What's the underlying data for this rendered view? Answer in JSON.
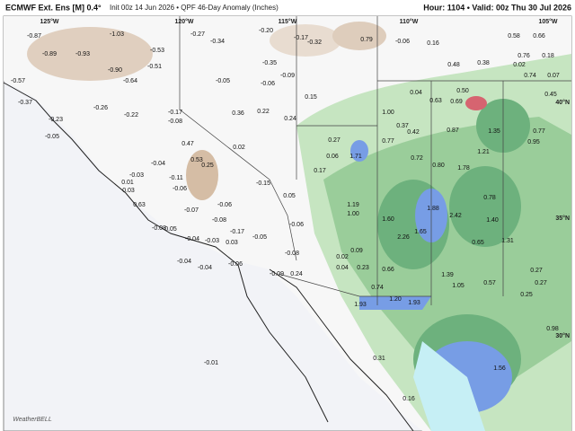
{
  "header": {
    "model": "ECMWF Ext. Ens [M] 0.4°",
    "init": "Init 00z 14 Jun 2026 • QPF 46-Day Anomaly (Inches)",
    "valid": "Hour: 1104 • Valid: 00z Thu 30 Jul 2026"
  },
  "map": {
    "longitudes": [
      "125°W",
      "120°W",
      "115°W",
      "110°W",
      "105°W"
    ],
    "latitudes": [
      "40°N",
      "35°N",
      "30°N"
    ],
    "logo": "WeatherBELL",
    "value_labels": [
      "-0.87",
      "-1.03",
      "-0.89",
      "-0.93",
      "-0.53",
      "-0.90",
      "-0.51",
      "-0.64",
      "-0.57",
      "-0.27",
      "-0.34",
      "-0.20",
      "-0.17",
      "-0.32",
      "0.79",
      "-0.06",
      "0.16",
      "0.58",
      "0.66",
      "0.76",
      "0.18",
      "0.48",
      "0.38",
      "0.02",
      "0.74",
      "0.07",
      "-0.35",
      "-0.09",
      "-0.05",
      "-0.06",
      "0.15",
      "0.04",
      "0.63",
      "0.69",
      "0.50",
      "0.45",
      "-0.37",
      "-0.26",
      "-0.22",
      "-0.17",
      "-0.08",
      "-0.23",
      "0.36",
      "0.22",
      "0.24",
      "1.00",
      "0.37",
      "0.42",
      "0.87",
      "1.35",
      "0.77",
      "0.95",
      "-0.05",
      "0.27",
      "0.77",
      "0.47",
      "0.02",
      "1.21",
      "0.06",
      "1.71",
      "0.72",
      "0.80",
      "1.78",
      "-0.04",
      "0.53",
      "0.25",
      "0.17",
      "-0.03",
      "-0.11",
      "0.01",
      "0.03",
      "-0.06",
      "-0.15",
      "0.05",
      "0.78",
      "1.19",
      "1.00",
      "1.88",
      "2.42",
      "1.40",
      "1.60",
      "0.63",
      "-0.06",
      "-0.07",
      "-0.08",
      "-0.17",
      "-0.05",
      "-0.06",
      "1.65",
      "2.26",
      "1.31",
      "0.65",
      "-0.08",
      "0.05",
      "-0.04",
      "-0.03",
      "0.03",
      "0.09",
      "0.02",
      "-0.08",
      "-0.04",
      "-0.04",
      "-0.06",
      "0.04",
      "0.23",
      "0.66",
      "1.39",
      "-0.09",
      "0.24",
      "0.27",
      "1.05",
      "0.57",
      "0.27",
      "0.74",
      "1.20",
      "0.25",
      "1.93",
      "1.93",
      "0.98",
      "0.31",
      "-0.01",
      "1.56",
      "0.16"
    ]
  }
}
